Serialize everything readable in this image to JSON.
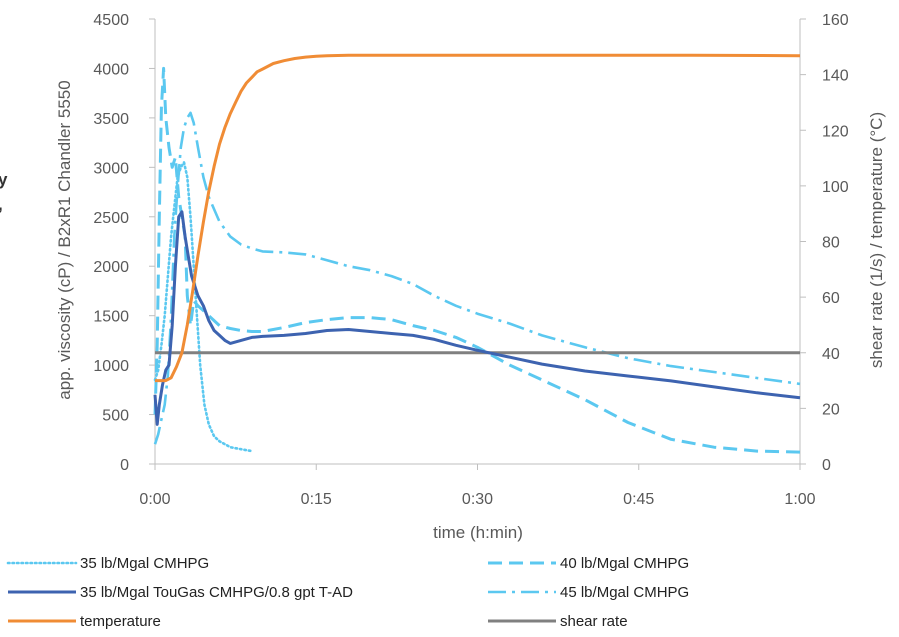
{
  "edge_labels": [
    "y",
    ","
  ],
  "chart_data": {
    "type": "line",
    "title": "",
    "xlabel": "time (h:min)",
    "ylabel": "app. viscosity (cP) / B2xR1 Chandler 5550",
    "y2label": "shear rate (1/s) / temperature (°C)",
    "xlim": [
      0,
      60
    ],
    "ylim": [
      0,
      4500
    ],
    "y2lim": [
      0,
      160
    ],
    "x_ticks": [
      0,
      15,
      30,
      45,
      60
    ],
    "x_tick_labels": [
      "0:00",
      "0:15",
      "0:30",
      "0:45",
      "1:00"
    ],
    "y_ticks": [
      0,
      500,
      1000,
      1500,
      2000,
      2500,
      3000,
      3500,
      4000,
      4500
    ],
    "y_tick_labels": [
      "0",
      "500",
      "1000",
      "1500",
      "2000",
      "2500",
      "3000",
      "3500",
      "4000",
      "4500"
    ],
    "y2_ticks": [
      0,
      20,
      40,
      60,
      80,
      100,
      120,
      140,
      160
    ],
    "y2_tick_labels": [
      "0",
      "20",
      "40",
      "60",
      "80",
      "100",
      "120",
      "140",
      "160"
    ],
    "grid": false,
    "legend_position": "bottom",
    "series": [
      {
        "name": "35 lb/Mgal CMHPG",
        "axis": "left",
        "color": "#5bc8f0",
        "dash": "dotted",
        "x": [
          0,
          0.3,
          0.6,
          0.9,
          1.2,
          1.5,
          1.8,
          2.1,
          2.4,
          2.7,
          3.0,
          3.3,
          3.6,
          3.9,
          4.2,
          4.6,
          5.0,
          5.5,
          6.0,
          6.5,
          7.0,
          8.0,
          9.0
        ],
        "y": [
          850,
          950,
          1200,
          1500,
          1900,
          2300,
          2600,
          2900,
          3000,
          3050,
          2900,
          2500,
          2000,
          1500,
          1000,
          600,
          400,
          280,
          230,
          200,
          170,
          150,
          130
        ]
      },
      {
        "name": "40 lb/Mgal CMHPG",
        "axis": "left",
        "color": "#5bc8f0",
        "dash": "dashed",
        "x": [
          0,
          0.2,
          0.4,
          0.6,
          0.8,
          1.0,
          1.3,
          1.6,
          1.9,
          2.2,
          2.5,
          2.8,
          3.0,
          3.3,
          3.6,
          4.0,
          4.5,
          5.0,
          5.5,
          6.0,
          7.0,
          8.0,
          9.0,
          10,
          12,
          14,
          16,
          18,
          20,
          22,
          24,
          26,
          28,
          30,
          33,
          36,
          40,
          44,
          48,
          52,
          56,
          60
        ],
        "y": [
          500,
          1200,
          2500,
          3600,
          4000,
          3500,
          3200,
          3000,
          3100,
          2700,
          2500,
          2300,
          1700,
          1400,
          1650,
          1600,
          1550,
          1500,
          1450,
          1400,
          1370,
          1350,
          1340,
          1340,
          1380,
          1430,
          1460,
          1480,
          1480,
          1460,
          1400,
          1350,
          1280,
          1180,
          1000,
          850,
          650,
          420,
          250,
          170,
          130,
          120
        ]
      },
      {
        "name": "45 lb/Mgal CMHPG",
        "axis": "left",
        "color": "#5bc8f0",
        "dash": "dashdot",
        "x": [
          0,
          0.3,
          0.6,
          0.9,
          1.2,
          1.5,
          1.8,
          2.1,
          2.4,
          2.7,
          3.0,
          3.3,
          3.6,
          4.0,
          4.5,
          5.0,
          6.0,
          7.0,
          8.0,
          9.0,
          10,
          12,
          14,
          16,
          18,
          20,
          22,
          24,
          26,
          28,
          30,
          33,
          36,
          40,
          44,
          48,
          52,
          56,
          60
        ],
        "y": [
          200,
          300,
          450,
          600,
          900,
          1500,
          2300,
          2800,
          3200,
          3400,
          3500,
          3550,
          3450,
          3200,
          2900,
          2700,
          2450,
          2300,
          2220,
          2180,
          2150,
          2140,
          2120,
          2060,
          2000,
          1960,
          1900,
          1820,
          1700,
          1600,
          1520,
          1420,
          1300,
          1180,
          1070,
          990,
          930,
          870,
          810
        ]
      },
      {
        "name": "35 lb/Mgal TouGas CMHPG/0.8 gpt T-AD",
        "axis": "left",
        "color": "#3d63b0",
        "dash": "solid",
        "x": [
          0,
          0.2,
          0.4,
          0.7,
          1.0,
          1.3,
          1.6,
          1.9,
          2.2,
          2.5,
          2.8,
          3.1,
          3.4,
          3.7,
          4.0,
          4.5,
          5.0,
          5.5,
          6.0,
          6.5,
          7.0,
          8.0,
          9.0,
          10,
          12,
          14,
          16,
          18,
          20,
          22,
          24,
          26,
          28,
          30,
          33,
          36,
          40,
          44,
          48,
          52,
          56,
          60
        ],
        "y": [
          700,
          400,
          600,
          800,
          950,
          1000,
          1400,
          2000,
          2500,
          2550,
          2300,
          2100,
          1900,
          1800,
          1700,
          1600,
          1450,
          1350,
          1300,
          1250,
          1220,
          1250,
          1280,
          1290,
          1300,
          1320,
          1350,
          1360,
          1340,
          1320,
          1300,
          1260,
          1200,
          1150,
          1080,
          1010,
          940,
          890,
          840,
          780,
          720,
          670
        ]
      },
      {
        "name": "temperature",
        "axis": "right",
        "color": "#f08c35",
        "dash": "solid",
        "x": [
          0,
          1.0,
          1.5,
          2.0,
          2.5,
          3.0,
          3.5,
          4.0,
          4.5,
          5.0,
          5.5,
          6.0,
          6.5,
          7.0,
          7.5,
          8.0,
          8.5,
          9.0,
          9.5,
          10,
          11,
          12,
          13,
          14,
          15,
          16,
          18,
          20,
          25,
          30,
          40,
          50,
          60
        ],
        "y": [
          30,
          30,
          31,
          35,
          40,
          50,
          62,
          75,
          87,
          98,
          107,
          115,
          121,
          126,
          130,
          134,
          137,
          139,
          141,
          142,
          144,
          145,
          145.8,
          146.3,
          146.6,
          146.8,
          147,
          147,
          147,
          147,
          147,
          147,
          146.8
        ]
      },
      {
        "name": "shear rate",
        "axis": "right",
        "color": "#808080",
        "dash": "solid",
        "x": [
          0,
          60
        ],
        "y": [
          40,
          40
        ]
      }
    ]
  }
}
